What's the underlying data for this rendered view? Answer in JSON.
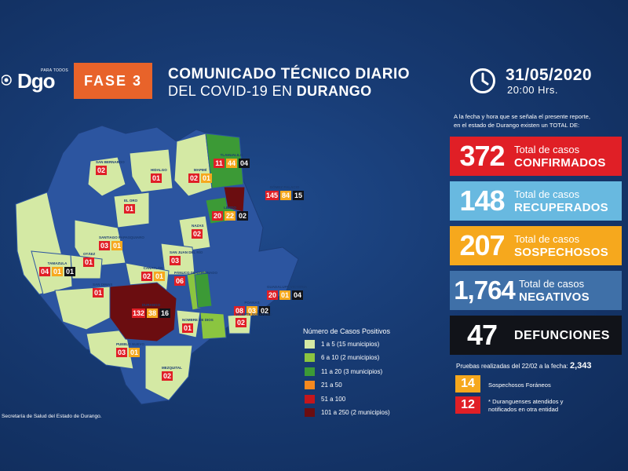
{
  "header": {
    "logo_small": "PARA TODOS",
    "logo_text": "Dgo",
    "fase": "FASE 3",
    "title_line1": "COMUNICADO TÉCNICO DIARIO",
    "title_line2_prefix": "DEL COVID-19 EN ",
    "title_line2_bold": "DURANGO",
    "date": "31/05/2020",
    "time": "20:00 Hrs."
  },
  "intro": {
    "line1": "A la fecha y hora que se señala el presente reporte,",
    "line2": "en el estado de Durango existen un TOTAL DE:"
  },
  "stats": {
    "confirmados": {
      "value": "372",
      "line1": "Total de casos",
      "line2": "CONFIRMADOS",
      "color": "#e01f26"
    },
    "recuperados": {
      "value": "148",
      "line1": "Total de casos",
      "line2": "RECUPERADOS",
      "color": "#68b9e0"
    },
    "sospechosos": {
      "value": "207",
      "line1": "Total de casos",
      "line2": "SOSPECHOSOS",
      "color": "#f6a81d"
    },
    "negativos": {
      "value": "1,764",
      "line1": "Total de casos",
      "line2": "NEGATIVOS",
      "color": "#3f70a8"
    },
    "defunciones": {
      "value": "47",
      "line2": "DEFUNCIONES",
      "color": "#111319"
    }
  },
  "pruebas": {
    "label": "Pruebas realizadas del 22/02 a la fecha:",
    "value": "2,343"
  },
  "foraneos": {
    "sospechosos": {
      "value": "14",
      "label": "Sospechosos Foráneos"
    },
    "atendidos": {
      "value": "12",
      "line1": "* Duranguenses atendidos y",
      "line2": "notificados en otra entidad"
    }
  },
  "legend": {
    "title": "Número de Casos Positivos",
    "items": [
      {
        "label": "1 a 5",
        "detail": "(15 municipios)",
        "color": "#d4e9a4"
      },
      {
        "label": "6 a 10",
        "detail": "(2 municipios)",
        "color": "#8bc540"
      },
      {
        "label": "11 a 20",
        "detail": "(3 municipios)",
        "color": "#3c9a36"
      },
      {
        "label": "21 a 50",
        "detail": "",
        "color": "#f6891f"
      },
      {
        "label": "51 a 100",
        "detail": "",
        "color": "#c4161c"
      },
      {
        "label": "101 a 250",
        "detail": "(2 municipios)",
        "color": "#6b0d10"
      }
    ]
  },
  "source": "Secretaría de Salud del Estado de Durango.",
  "municipios": [
    {
      "name": "SAN BERNARDO",
      "values": [
        "02"
      ]
    },
    {
      "name": "HIDALGO",
      "values": [
        "01"
      ]
    },
    {
      "name": "MAPIMÍ",
      "values": [
        "02",
        "01"
      ]
    },
    {
      "name": "TLAHUALILO",
      "values": [
        "11",
        "44",
        "04"
      ]
    },
    {
      "name": "GÓMEZ PALACIO",
      "values": [
        "145",
        "84",
        "15"
      ]
    },
    {
      "name": "LERDO",
      "values": [
        "20",
        "22",
        "02"
      ]
    },
    {
      "name": "EL ORO",
      "values": [
        "01"
      ]
    },
    {
      "name": "NAZAS",
      "values": [
        "02"
      ]
    },
    {
      "name": "SANTIAGO PAPASQUIARO",
      "values": [
        "03",
        "01"
      ]
    },
    {
      "name": "OTÁEZ",
      "values": [
        "01"
      ]
    },
    {
      "name": "TAMAZULA",
      "values": [
        "04",
        "01",
        "01"
      ]
    },
    {
      "name": "SAN JUAN DEL RÍO",
      "values": [
        "03"
      ]
    },
    {
      "name": "CANATLÁN",
      "values": [
        "02",
        "01"
      ]
    },
    {
      "name": "PÁNUCO DE CORONADO",
      "values": [
        "06"
      ]
    },
    {
      "name": "GUADALUPE VICTORIA",
      "values": [
        "20",
        "01",
        "04"
      ]
    },
    {
      "name": "SAN DIMAS",
      "values": [
        "01"
      ]
    },
    {
      "name": "DURANGO",
      "values": [
        "132",
        "38",
        "16"
      ]
    },
    {
      "name": "POANAS",
      "values": [
        "08",
        "03",
        "02"
      ]
    },
    {
      "name": "NOMBRE DE DIOS",
      "values": [
        "01"
      ]
    },
    {
      "name": "VICENTE GUERRERO",
      "values": [
        "02"
      ]
    },
    {
      "name": "PUEBLO NUEVO",
      "values": [
        "03",
        "01"
      ]
    },
    {
      "name": "MEZQUITAL",
      "values": [
        "02"
      ]
    }
  ]
}
